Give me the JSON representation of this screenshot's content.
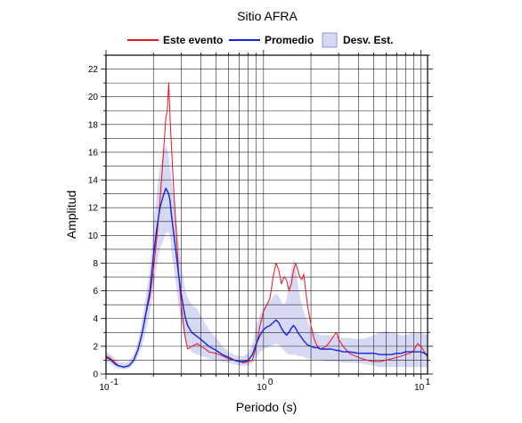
{
  "chart_data": {
    "type": "line",
    "title": "Sitio AFRA",
    "xlabel": "Periodo (s)",
    "ylabel": "Amplitud",
    "x_scale": "log",
    "xlim": [
      0.1,
      11
    ],
    "ylim": [
      0,
      23
    ],
    "grid": true,
    "legend_position": "top-center",
    "x_ticks": [
      {
        "value": 0.1,
        "base": "10",
        "exp": "-1"
      },
      {
        "value": 1,
        "base": "10",
        "exp": "0"
      },
      {
        "value": 10,
        "base": "10",
        "exp": "1"
      }
    ],
    "y_ticks": [
      0,
      2,
      4,
      6,
      8,
      10,
      12,
      14,
      16,
      18,
      20,
      22
    ],
    "legend": [
      {
        "label": "Este evento",
        "kind": "line",
        "color": "#e8141c"
      },
      {
        "label": "Promedio",
        "kind": "line",
        "color": "#1424d8"
      },
      {
        "label": "Desv. Est.",
        "kind": "band",
        "color": "#d6d8f4"
      }
    ],
    "series": [
      {
        "name": "Este evento",
        "color": "#e8141c",
        "x": [
          0.1,
          0.105,
          0.11,
          0.115,
          0.12,
          0.13,
          0.14,
          0.15,
          0.16,
          0.17,
          0.18,
          0.19,
          0.2,
          0.21,
          0.22,
          0.23,
          0.24,
          0.245,
          0.25,
          0.255,
          0.26,
          0.27,
          0.28,
          0.29,
          0.3,
          0.31,
          0.32,
          0.33,
          0.35,
          0.38,
          0.4,
          0.43,
          0.45,
          0.5,
          0.55,
          0.6,
          0.65,
          0.7,
          0.75,
          0.8,
          0.85,
          0.9,
          0.95,
          1.0,
          1.05,
          1.1,
          1.15,
          1.2,
          1.25,
          1.3,
          1.35,
          1.4,
          1.45,
          1.5,
          1.55,
          1.6,
          1.65,
          1.7,
          1.75,
          1.8,
          1.9,
          2.0,
          2.1,
          2.2,
          2.3,
          2.5,
          2.7,
          2.9,
          3.0,
          3.2,
          3.5,
          4.0,
          4.5,
          5.0,
          5.5,
          6.0,
          6.5,
          7.0,
          7.5,
          8.0,
          8.5,
          9.0,
          9.5,
          10.0,
          10.5,
          11.0
        ],
        "y": [
          1.3,
          1.2,
          1.0,
          0.8,
          0.6,
          0.5,
          0.6,
          1.0,
          1.8,
          3.0,
          4.4,
          5.6,
          7.5,
          9.8,
          12.5,
          15.5,
          18.5,
          19.0,
          21.0,
          18.5,
          16.5,
          13.0,
          10.0,
          7.0,
          5.0,
          3.6,
          2.5,
          1.8,
          2.0,
          2.2,
          2.0,
          1.8,
          1.6,
          1.5,
          1.3,
          1.1,
          1.0,
          0.9,
          0.8,
          0.9,
          1.0,
          2.0,
          3.5,
          4.5,
          5.0,
          5.5,
          7.0,
          8.0,
          7.5,
          6.5,
          7.0,
          6.8,
          6.0,
          6.5,
          7.5,
          8.0,
          7.5,
          7.0,
          6.8,
          7.2,
          5.0,
          3.5,
          2.5,
          2.0,
          1.8,
          2.0,
          2.5,
          3.0,
          2.5,
          2.0,
          1.5,
          1.2,
          1.0,
          0.9,
          0.9,
          1.0,
          1.1,
          1.2,
          1.3,
          1.4,
          1.5,
          1.7,
          2.2,
          2.0,
          1.6,
          1.2
        ]
      },
      {
        "name": "Promedio",
        "color": "#1424d8",
        "x": [
          0.1,
          0.105,
          0.11,
          0.115,
          0.12,
          0.13,
          0.14,
          0.15,
          0.16,
          0.17,
          0.18,
          0.19,
          0.2,
          0.21,
          0.22,
          0.23,
          0.24,
          0.245,
          0.25,
          0.255,
          0.26,
          0.27,
          0.28,
          0.29,
          0.3,
          0.31,
          0.32,
          0.33,
          0.35,
          0.38,
          0.4,
          0.43,
          0.45,
          0.5,
          0.55,
          0.6,
          0.65,
          0.7,
          0.75,
          0.8,
          0.85,
          0.9,
          0.95,
          1.0,
          1.05,
          1.1,
          1.15,
          1.2,
          1.25,
          1.3,
          1.35,
          1.4,
          1.45,
          1.5,
          1.55,
          1.6,
          1.65,
          1.7,
          1.75,
          1.8,
          1.9,
          2.0,
          2.1,
          2.2,
          2.3,
          2.5,
          2.7,
          2.9,
          3.0,
          3.2,
          3.5,
          4.0,
          4.5,
          5.0,
          5.5,
          6.0,
          6.5,
          7.0,
          7.5,
          8.0,
          8.5,
          9.0,
          9.5,
          10.0,
          10.5,
          11.0
        ],
        "y": [
          1.2,
          1.1,
          0.9,
          0.7,
          0.6,
          0.5,
          0.6,
          1.0,
          1.8,
          3.0,
          4.5,
          6.0,
          8.5,
          10.5,
          12.0,
          12.8,
          13.4,
          13.2,
          13.0,
          12.5,
          11.5,
          10.0,
          8.5,
          7.0,
          5.8,
          4.8,
          4.0,
          3.5,
          3.0,
          2.7,
          2.5,
          2.2,
          2.0,
          1.7,
          1.4,
          1.2,
          1.0,
          0.9,
          0.9,
          1.0,
          1.4,
          2.2,
          2.8,
          3.2,
          3.4,
          3.5,
          3.7,
          3.9,
          3.7,
          3.3,
          3.0,
          2.8,
          3.0,
          3.3,
          3.5,
          3.3,
          3.0,
          2.8,
          2.6,
          2.4,
          2.1,
          2.0,
          1.9,
          1.9,
          1.8,
          1.8,
          1.8,
          1.7,
          1.7,
          1.6,
          1.6,
          1.5,
          1.5,
          1.5,
          1.4,
          1.4,
          1.4,
          1.5,
          1.5,
          1.6,
          1.6,
          1.6,
          1.6,
          1.6,
          1.5,
          1.4
        ]
      }
    ],
    "band": {
      "name": "Desv. Est.",
      "color": "#d6d8f4",
      "x": [
        0.1,
        0.105,
        0.11,
        0.115,
        0.12,
        0.13,
        0.14,
        0.15,
        0.16,
        0.17,
        0.18,
        0.19,
        0.2,
        0.21,
        0.22,
        0.23,
        0.24,
        0.245,
        0.25,
        0.255,
        0.26,
        0.27,
        0.28,
        0.29,
        0.3,
        0.31,
        0.32,
        0.33,
        0.35,
        0.38,
        0.4,
        0.43,
        0.45,
        0.5,
        0.55,
        0.6,
        0.65,
        0.7,
        0.75,
        0.8,
        0.85,
        0.9,
        0.95,
        1.0,
        1.05,
        1.1,
        1.15,
        1.2,
        1.25,
        1.3,
        1.35,
        1.4,
        1.45,
        1.5,
        1.55,
        1.6,
        1.65,
        1.7,
        1.75,
        1.8,
        1.9,
        2.0,
        2.1,
        2.2,
        2.3,
        2.5,
        2.7,
        2.9,
        3.0,
        3.2,
        3.5,
        4.0,
        4.5,
        5.0,
        5.5,
        6.0,
        6.5,
        7.0,
        7.5,
        8.0,
        8.5,
        9.0,
        9.5,
        10.0,
        10.5,
        11.0
      ],
      "upper": [
        1.6,
        1.5,
        1.3,
        1.1,
        0.9,
        0.8,
        0.9,
        1.4,
        2.4,
        4.0,
        5.8,
        7.6,
        10.5,
        13.0,
        15.0,
        16.0,
        16.5,
        16.2,
        15.8,
        15.0,
        14.0,
        12.5,
        11.0,
        9.5,
        8.0,
        6.8,
        6.0,
        5.5,
        5.0,
        4.7,
        4.2,
        3.6,
        3.2,
        2.6,
        2.0,
        1.6,
        1.4,
        1.3,
        1.3,
        1.5,
        2.2,
        3.5,
        4.3,
        4.8,
        5.1,
        5.3,
        5.6,
        5.8,
        5.6,
        5.2,
        5.0,
        5.4,
        6.5,
        7.5,
        8.3,
        7.8,
        6.5,
        5.6,
        5.0,
        4.5,
        3.8,
        3.3,
        3.0,
        2.9,
        2.8,
        2.8,
        2.8,
        2.7,
        2.7,
        2.6,
        2.6,
        2.5,
        2.6,
        2.8,
        3.0,
        3.1,
        3.0,
        2.9,
        2.8,
        2.8,
        2.9,
        3.0,
        3.0,
        3.0,
        2.9,
        2.8
      ],
      "lower": [
        0.9,
        0.8,
        0.6,
        0.5,
        0.4,
        0.35,
        0.4,
        0.7,
        1.3,
        2.1,
        3.2,
        4.4,
        6.2,
        7.8,
        9.0,
        9.6,
        10.2,
        10.2,
        10.2,
        10.0,
        9.0,
        7.6,
        6.2,
        4.8,
        3.8,
        3.0,
        2.4,
        2.0,
        1.6,
        1.4,
        1.3,
        1.2,
        1.1,
        1.0,
        0.9,
        0.8,
        0.7,
        0.6,
        0.6,
        0.6,
        0.8,
        1.2,
        1.6,
        1.8,
        1.9,
        2.0,
        2.1,
        2.2,
        2.1,
        1.9,
        1.7,
        1.5,
        1.4,
        1.4,
        1.4,
        1.4,
        1.3,
        1.3,
        1.3,
        1.2,
        1.1,
        1.1,
        1.0,
        1.0,
        1.0,
        0.9,
        0.9,
        0.9,
        0.9,
        0.8,
        0.8,
        0.8,
        0.7,
        0.6,
        0.5,
        0.5,
        0.5,
        0.5,
        0.5,
        0.5,
        0.5,
        0.5,
        0.5,
        0.5,
        0.5,
        0.5
      ]
    }
  }
}
